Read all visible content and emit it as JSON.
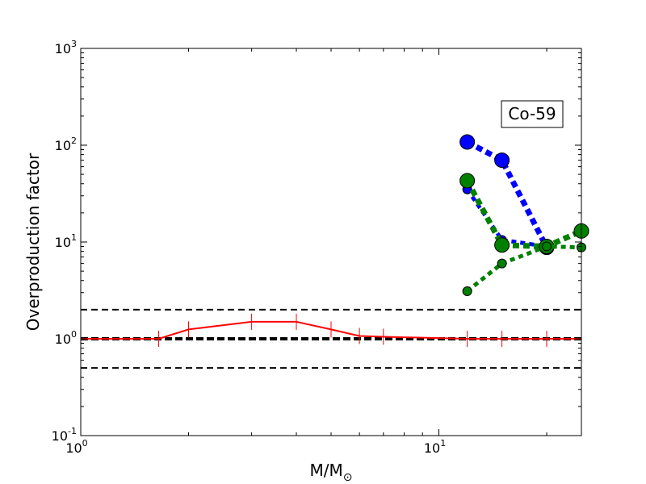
{
  "chart_data": {
    "type": "line",
    "xscale": "log",
    "yscale": "log",
    "xlim": [
      1,
      25
    ],
    "ylim": [
      0.1,
      1000
    ],
    "xlabel": "M/M",
    "xlabel_sub": "⊙",
    "ylabel": "Overproduction factor",
    "x_ticks": [
      {
        "value": 1,
        "base": "10",
        "exp": "0"
      },
      {
        "value": 10,
        "base": "10",
        "exp": "1"
      }
    ],
    "y_ticks": [
      {
        "value": 0.1,
        "base": "10",
        "exp": "-1"
      },
      {
        "value": 1,
        "base": "10",
        "exp": "0"
      },
      {
        "value": 10,
        "base": "10",
        "exp": "1"
      },
      {
        "value": 100,
        "base": "10",
        "exp": "2"
      },
      {
        "value": 1000,
        "base": "10",
        "exp": "3"
      }
    ],
    "annotation": "Co-59",
    "annotation_position": "upper-right",
    "reference_lines": [
      {
        "y": 2.0,
        "style": "dashed",
        "color": "#000000"
      },
      {
        "y": 1.0,
        "style": "dashed-thick",
        "color": "#000000"
      },
      {
        "y": 0.5,
        "style": "dashed",
        "color": "#000000"
      }
    ],
    "series": [
      {
        "style": "solid",
        "color": "#ff0000",
        "marker": "tick",
        "x": [
          1,
          1.65,
          2,
          3,
          4,
          5,
          6,
          7,
          12,
          15,
          20,
          25
        ],
        "y": [
          1.0,
          1.0,
          1.25,
          1.5,
          1.5,
          1.25,
          1.07,
          1.05,
          1.0,
          1.0,
          1.0,
          1.0
        ]
      },
      {
        "style": "dotted-thick",
        "color": "#0000ff",
        "marker": "circle-large",
        "x": [
          12,
          15,
          20
        ],
        "y": [
          108,
          70,
          8.8
        ]
      },
      {
        "style": "dotted-thick",
        "color": "#0000ff",
        "marker": "circle-small",
        "x": [
          12,
          15,
          20
        ],
        "y": [
          35,
          10.5,
          9.0
        ]
      },
      {
        "style": "dotted-thick",
        "color": "#008000",
        "marker": "circle-large",
        "x": [
          12,
          15,
          20,
          25
        ],
        "y": [
          43,
          9.3,
          9.0,
          13.0
        ]
      },
      {
        "style": "dotted-thick",
        "color": "#008000",
        "marker": "circle-small",
        "x": [
          12,
          15,
          20,
          25
        ],
        "y": [
          3.1,
          6.0,
          9.0,
          8.8
        ]
      }
    ]
  }
}
